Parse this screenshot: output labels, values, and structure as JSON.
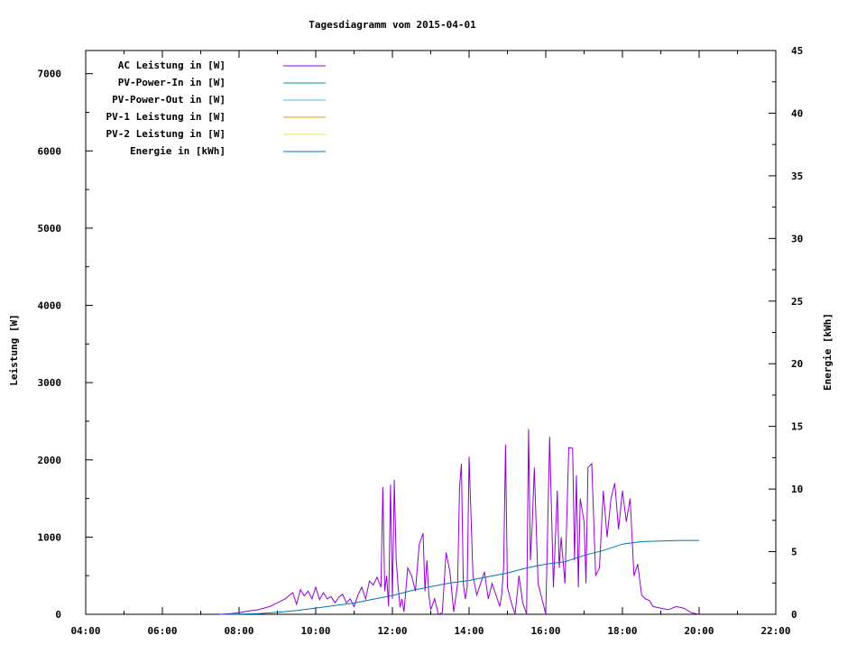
{
  "chart_data": {
    "type": "line",
    "title": "Tagesdiagramm vom 2015-04-01",
    "xlabel": "",
    "ylabel_left": "Leistung [W]",
    "ylabel_right": "Energie [kWh]",
    "xlim": [
      4,
      22
    ],
    "ylim_left": [
      0,
      7300
    ],
    "ylim_right": [
      0,
      45
    ],
    "x_ticks": [
      "04:00",
      "06:00",
      "08:00",
      "10:00",
      "12:00",
      "14:00",
      "16:00",
      "18:00",
      "20:00",
      "22:00"
    ],
    "y_left_ticks": [
      0,
      1000,
      2000,
      3000,
      4000,
      5000,
      6000,
      7000
    ],
    "y_right_ticks": [
      0,
      5,
      10,
      15,
      20,
      25,
      30,
      35,
      40,
      45
    ],
    "legend_position": "top-left",
    "grid": false,
    "series": [
      {
        "name": "AC Leistung in [W]",
        "color": "#9400d3",
        "axis": "left",
        "x": [
          7.5,
          7.8,
          8.0,
          8.2,
          8.5,
          8.8,
          9.0,
          9.2,
          9.4,
          9.5,
          9.6,
          9.7,
          9.8,
          9.9,
          10.0,
          10.1,
          10.2,
          10.3,
          10.4,
          10.5,
          10.6,
          10.7,
          10.8,
          10.9,
          11.0,
          11.1,
          11.2,
          11.3,
          11.4,
          11.5,
          11.6,
          11.7,
          11.75,
          11.8,
          11.85,
          11.9,
          11.95,
          12.0,
          12.05,
          12.1,
          12.15,
          12.2,
          12.25,
          12.3,
          12.4,
          12.5,
          12.6,
          12.7,
          12.8,
          12.85,
          12.9,
          12.95,
          13.0,
          13.1,
          13.2,
          13.3,
          13.4,
          13.5,
          13.6,
          13.7,
          13.75,
          13.8,
          13.85,
          13.9,
          13.95,
          14.0,
          14.1,
          14.2,
          14.3,
          14.4,
          14.5,
          14.6,
          14.7,
          14.8,
          14.85,
          14.9,
          14.95,
          15.0,
          15.1,
          15.2,
          15.3,
          15.4,
          15.5,
          15.55,
          15.6,
          15.65,
          15.7,
          15.8,
          15.9,
          16.0,
          16.1,
          16.2,
          16.3,
          16.35,
          16.4,
          16.5,
          16.6,
          16.7,
          16.75,
          16.8,
          16.85,
          16.9,
          17.0,
          17.05,
          17.1,
          17.2,
          17.3,
          17.4,
          17.5,
          17.6,
          17.7,
          17.8,
          17.9,
          18.0,
          18.1,
          18.2,
          18.3,
          18.4,
          18.5,
          18.6,
          18.7,
          18.8,
          19.0,
          19.2,
          19.4,
          19.6,
          19.8,
          20.0
        ],
        "y": [
          0,
          10,
          20,
          40,
          60,
          100,
          150,
          200,
          280,
          130,
          320,
          240,
          300,
          200,
          350,
          190,
          280,
          200,
          230,
          150,
          220,
          260,
          150,
          200,
          100,
          250,
          350,
          200,
          430,
          380,
          480,
          350,
          1650,
          300,
          500,
          100,
          1680,
          200,
          1740,
          700,
          350,
          90,
          200,
          30,
          600,
          500,
          300,
          900,
          1050,
          300,
          700,
          250,
          60,
          200,
          0,
          20,
          800,
          550,
          30,
          400,
          1640,
          1950,
          400,
          200,
          350,
          2040,
          500,
          250,
          400,
          550,
          200,
          400,
          250,
          100,
          250,
          600,
          2200,
          350,
          150,
          0,
          500,
          150,
          0,
          2400,
          700,
          1200,
          1900,
          400,
          200,
          0,
          2300,
          350,
          1600,
          600,
          1000,
          400,
          2160,
          2150,
          700,
          1800,
          350,
          1500,
          1200,
          400,
          1900,
          1950,
          500,
          600,
          1600,
          1000,
          1500,
          1700,
          1100,
          1600,
          1200,
          1500,
          500,
          650,
          250,
          200,
          180,
          100,
          80,
          60,
          100,
          80,
          20,
          0
        ]
      },
      {
        "name": "PV-Power-In in [W]",
        "color": "#009e73",
        "axis": "left",
        "x": [],
        "y": []
      },
      {
        "name": "PV-Power-Out in [W]",
        "color": "#56b4e9",
        "axis": "left",
        "x": [],
        "y": []
      },
      {
        "name": "PV-1 Leistung in [W]",
        "color": "#e69f00",
        "axis": "left",
        "x": [],
        "y": []
      },
      {
        "name": "PV-2 Leistung in [W]",
        "color": "#f0e442",
        "axis": "left",
        "x": [],
        "y": []
      },
      {
        "name": "Energie in [kWh]",
        "color": "#0072b2",
        "axis": "right",
        "x": [
          7.5,
          8.0,
          8.5,
          9.0,
          9.5,
          10.0,
          10.5,
          11.0,
          11.5,
          12.0,
          12.5,
          13.0,
          13.5,
          14.0,
          14.5,
          15.0,
          15.5,
          16.0,
          16.5,
          17.0,
          17.5,
          18.0,
          18.5,
          19.0,
          19.5,
          20.0
        ],
        "y": [
          0,
          0.02,
          0.05,
          0.15,
          0.3,
          0.5,
          0.7,
          0.9,
          1.2,
          1.5,
          1.9,
          2.2,
          2.5,
          2.7,
          3.0,
          3.3,
          3.7,
          4.0,
          4.2,
          4.7,
          5.1,
          5.6,
          5.8,
          5.85,
          5.9,
          5.9
        ]
      }
    ]
  }
}
